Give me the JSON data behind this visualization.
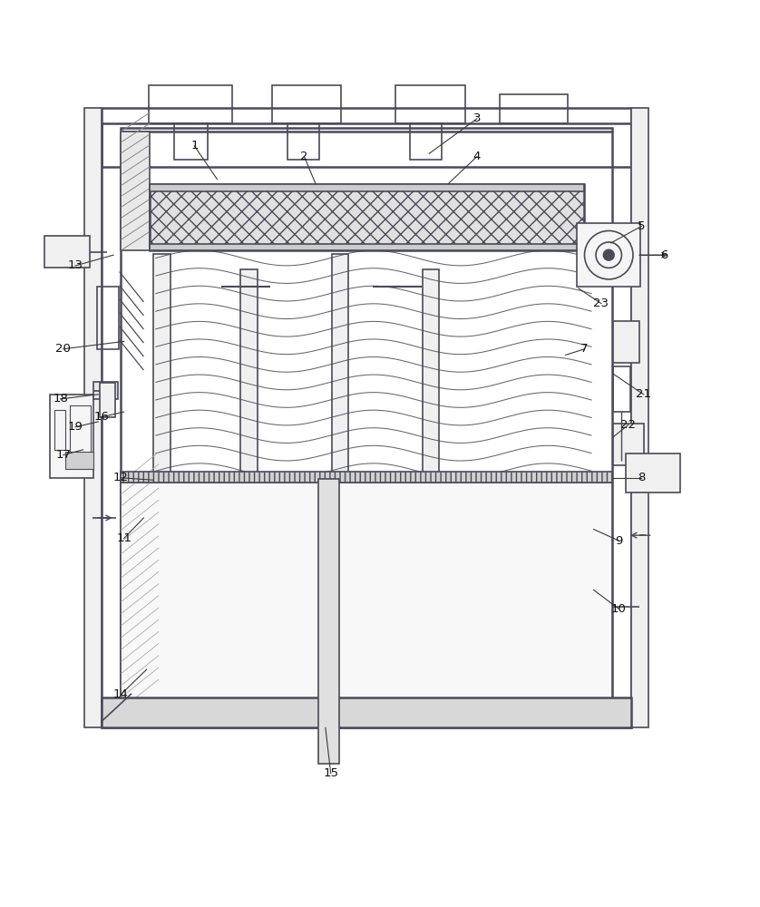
{
  "bg_color": "#ffffff",
  "lc": "#4a4a5a",
  "lw": 1.2,
  "lw2": 1.8,
  "fig_w": 8.38,
  "fig_h": 10.0,
  "label_positions": {
    "1": [
      0.255,
      0.906,
      0.285,
      0.862
    ],
    "2": [
      0.4,
      0.892,
      0.415,
      0.856
    ],
    "3": [
      0.628,
      0.942,
      0.565,
      0.896
    ],
    "4": [
      0.628,
      0.892,
      0.59,
      0.856
    ],
    "5": [
      0.845,
      0.8,
      0.805,
      0.778
    ],
    "6": [
      0.875,
      0.762,
      0.842,
      0.762
    ],
    "7": [
      0.77,
      0.638,
      0.745,
      0.63
    ],
    "8": [
      0.845,
      0.468,
      0.808,
      0.468
    ],
    "9": [
      0.815,
      0.385,
      0.782,
      0.4
    ],
    "10": [
      0.815,
      0.295,
      0.782,
      0.32
    ],
    "11": [
      0.162,
      0.388,
      0.188,
      0.415
    ],
    "12": [
      0.158,
      0.468,
      0.2,
      0.465
    ],
    "13": [
      0.098,
      0.748,
      0.148,
      0.762
    ],
    "14": [
      0.158,
      0.182,
      0.192,
      0.215
    ],
    "15": [
      0.435,
      0.078,
      0.428,
      0.138
    ],
    "16": [
      0.132,
      0.548,
      0.162,
      0.555
    ],
    "17": [
      0.082,
      0.498,
      0.108,
      0.505
    ],
    "18": [
      0.078,
      0.572,
      0.128,
      0.578
    ],
    "19": [
      0.098,
      0.535,
      0.128,
      0.542
    ],
    "20": [
      0.082,
      0.638,
      0.162,
      0.648
    ],
    "21": [
      0.848,
      0.578,
      0.808,
      0.605
    ],
    "22": [
      0.828,
      0.538,
      0.808,
      0.522
    ],
    "23": [
      0.792,
      0.698,
      0.762,
      0.718
    ]
  }
}
